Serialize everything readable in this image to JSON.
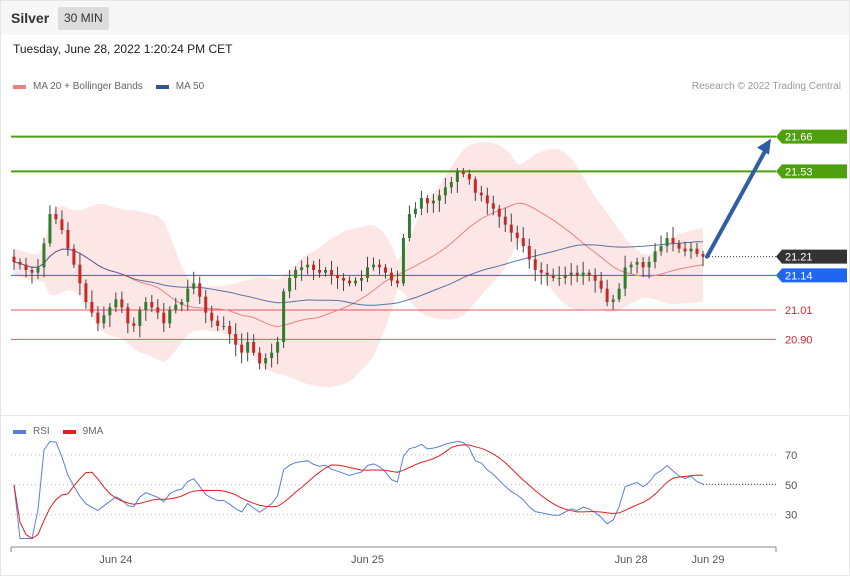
{
  "header": {
    "symbol": "Silver",
    "timeframe": "30 MIN",
    "datetime": "Tuesday, June 28, 2022 1:20:24 PM CET",
    "credit": "Research © 2022 Trading Central"
  },
  "chart_data": [
    {
      "type": "candlestick",
      "legend_position": "top-left",
      "legend": [
        {
          "name": "MA 20 + Bollinger Bands",
          "color": "#f08080"
        },
        {
          "name": "MA 50",
          "color": "#2f5597"
        }
      ],
      "y_range": [
        20.62,
        21.88
      ],
      "x_labels": [
        "Jun 24",
        "Jun 25",
        "Jun 28",
        "Jun 29"
      ],
      "closes": [
        21.19,
        21.18,
        21.16,
        21.15,
        21.17,
        21.26,
        21.37,
        21.35,
        21.31,
        21.24,
        21.18,
        21.11,
        21.04,
        21.0,
        20.96,
        20.99,
        21.02,
        21.05,
        21.02,
        20.96,
        20.95,
        21.01,
        21.04,
        21.02,
        21.0,
        20.96,
        21.01,
        21.03,
        21.04,
        21.09,
        21.11,
        21.06,
        21.0,
        20.97,
        20.95,
        20.95,
        20.92,
        20.88,
        20.85,
        20.89,
        20.85,
        20.81,
        20.83,
        20.85,
        20.89,
        21.08,
        21.13,
        21.16,
        21.17,
        21.18,
        21.16,
        21.15,
        21.16,
        21.14,
        21.13,
        21.12,
        21.11,
        21.12,
        21.13,
        21.17,
        21.18,
        21.17,
        21.15,
        21.12,
        21.11,
        21.28,
        21.37,
        21.39,
        21.43,
        21.41,
        21.42,
        21.44,
        21.47,
        21.49,
        21.53,
        21.52,
        21.5,
        21.45,
        21.44,
        21.41,
        21.39,
        21.36,
        21.33,
        21.3,
        21.28,
        21.25,
        21.2,
        21.16,
        21.15,
        21.14,
        21.13,
        21.13,
        21.14,
        21.15,
        21.14,
        21.15,
        21.14,
        21.12,
        21.09,
        21.04,
        21.05,
        21.09,
        21.17,
        21.18,
        21.19,
        21.17,
        21.19,
        21.23,
        21.25,
        21.28,
        21.26,
        21.24,
        21.23,
        21.24,
        21.22,
        21.21
      ],
      "horizontal_levels": [
        {
          "label": "21.66",
          "value": 21.66,
          "color": "#4ea00f"
        },
        {
          "label": "21.53",
          "value": 21.53,
          "color": "#4ea00f"
        },
        {
          "label": "21.21",
          "value": 21.21,
          "color": "#333333",
          "style": "dotted"
        },
        {
          "label": "21.14",
          "value": 21.14,
          "color": "#1f67f0"
        },
        {
          "label": "21.01",
          "value": 21.01,
          "color": "#d9232e"
        },
        {
          "label": "20.90",
          "value": 20.9,
          "color": "#d9232e"
        }
      ],
      "projection": {
        "from": 21.21,
        "to": 21.66,
        "color": "#2e5fa4"
      }
    },
    {
      "type": "line",
      "legend_position": "top-left",
      "series": [
        {
          "name": "RSI",
          "color": "#5b7fd6"
        },
        {
          "name": "9MA",
          "color": "#e02020"
        }
      ],
      "y_gridlines": [
        70,
        50,
        30
      ],
      "y_range": [
        13,
        80
      ]
    }
  ]
}
